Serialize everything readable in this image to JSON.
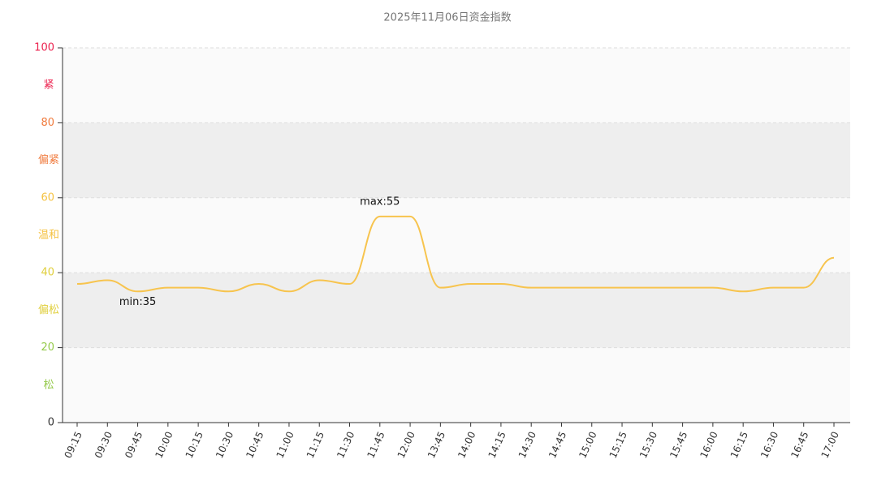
{
  "chart_data": {
    "type": "line",
    "title": "2025年11月06日资金指数",
    "categories": [
      "09:15",
      "09:30",
      "09:45",
      "10:00",
      "10:15",
      "10:30",
      "10:45",
      "11:00",
      "11:15",
      "11:30",
      "11:45",
      "12:00",
      "13:45",
      "14:00",
      "14:15",
      "14:30",
      "14:45",
      "15:00",
      "15:15",
      "15:30",
      "15:45",
      "16:00",
      "16:15",
      "16:30",
      "16:45",
      "17:00"
    ],
    "series": [
      {
        "color": "#f7c44e",
        "values": [
          37,
          38,
          35,
          36,
          36,
          35,
          37,
          35,
          38,
          37,
          55,
          55,
          36,
          37,
          37,
          36,
          36,
          36,
          36,
          36,
          36,
          36,
          35,
          36,
          36,
          44
        ]
      }
    ],
    "ylim": [
      0,
      100
    ],
    "yticks": [
      0,
      20,
      40,
      60,
      80,
      100
    ],
    "grid": true,
    "bands": [
      {
        "from": 0,
        "to": 20,
        "label": "松",
        "color": "#94c94a"
      },
      {
        "from": 20,
        "to": 40,
        "label": "偏松",
        "color": "#e0cf3c"
      },
      {
        "from": 40,
        "to": 60,
        "label": "温和",
        "color": "#f5c242"
      },
      {
        "from": 60,
        "to": 80,
        "label": "偏紧",
        "color": "#f07a3c"
      },
      {
        "from": 80,
        "to": 100,
        "label": "紧",
        "color": "#ec2450"
      }
    ],
    "annotations": [
      {
        "label": "max:55",
        "value": 55,
        "x": "11:45"
      },
      {
        "label": "min:35",
        "value": 35,
        "x": "09:45"
      }
    ]
  }
}
